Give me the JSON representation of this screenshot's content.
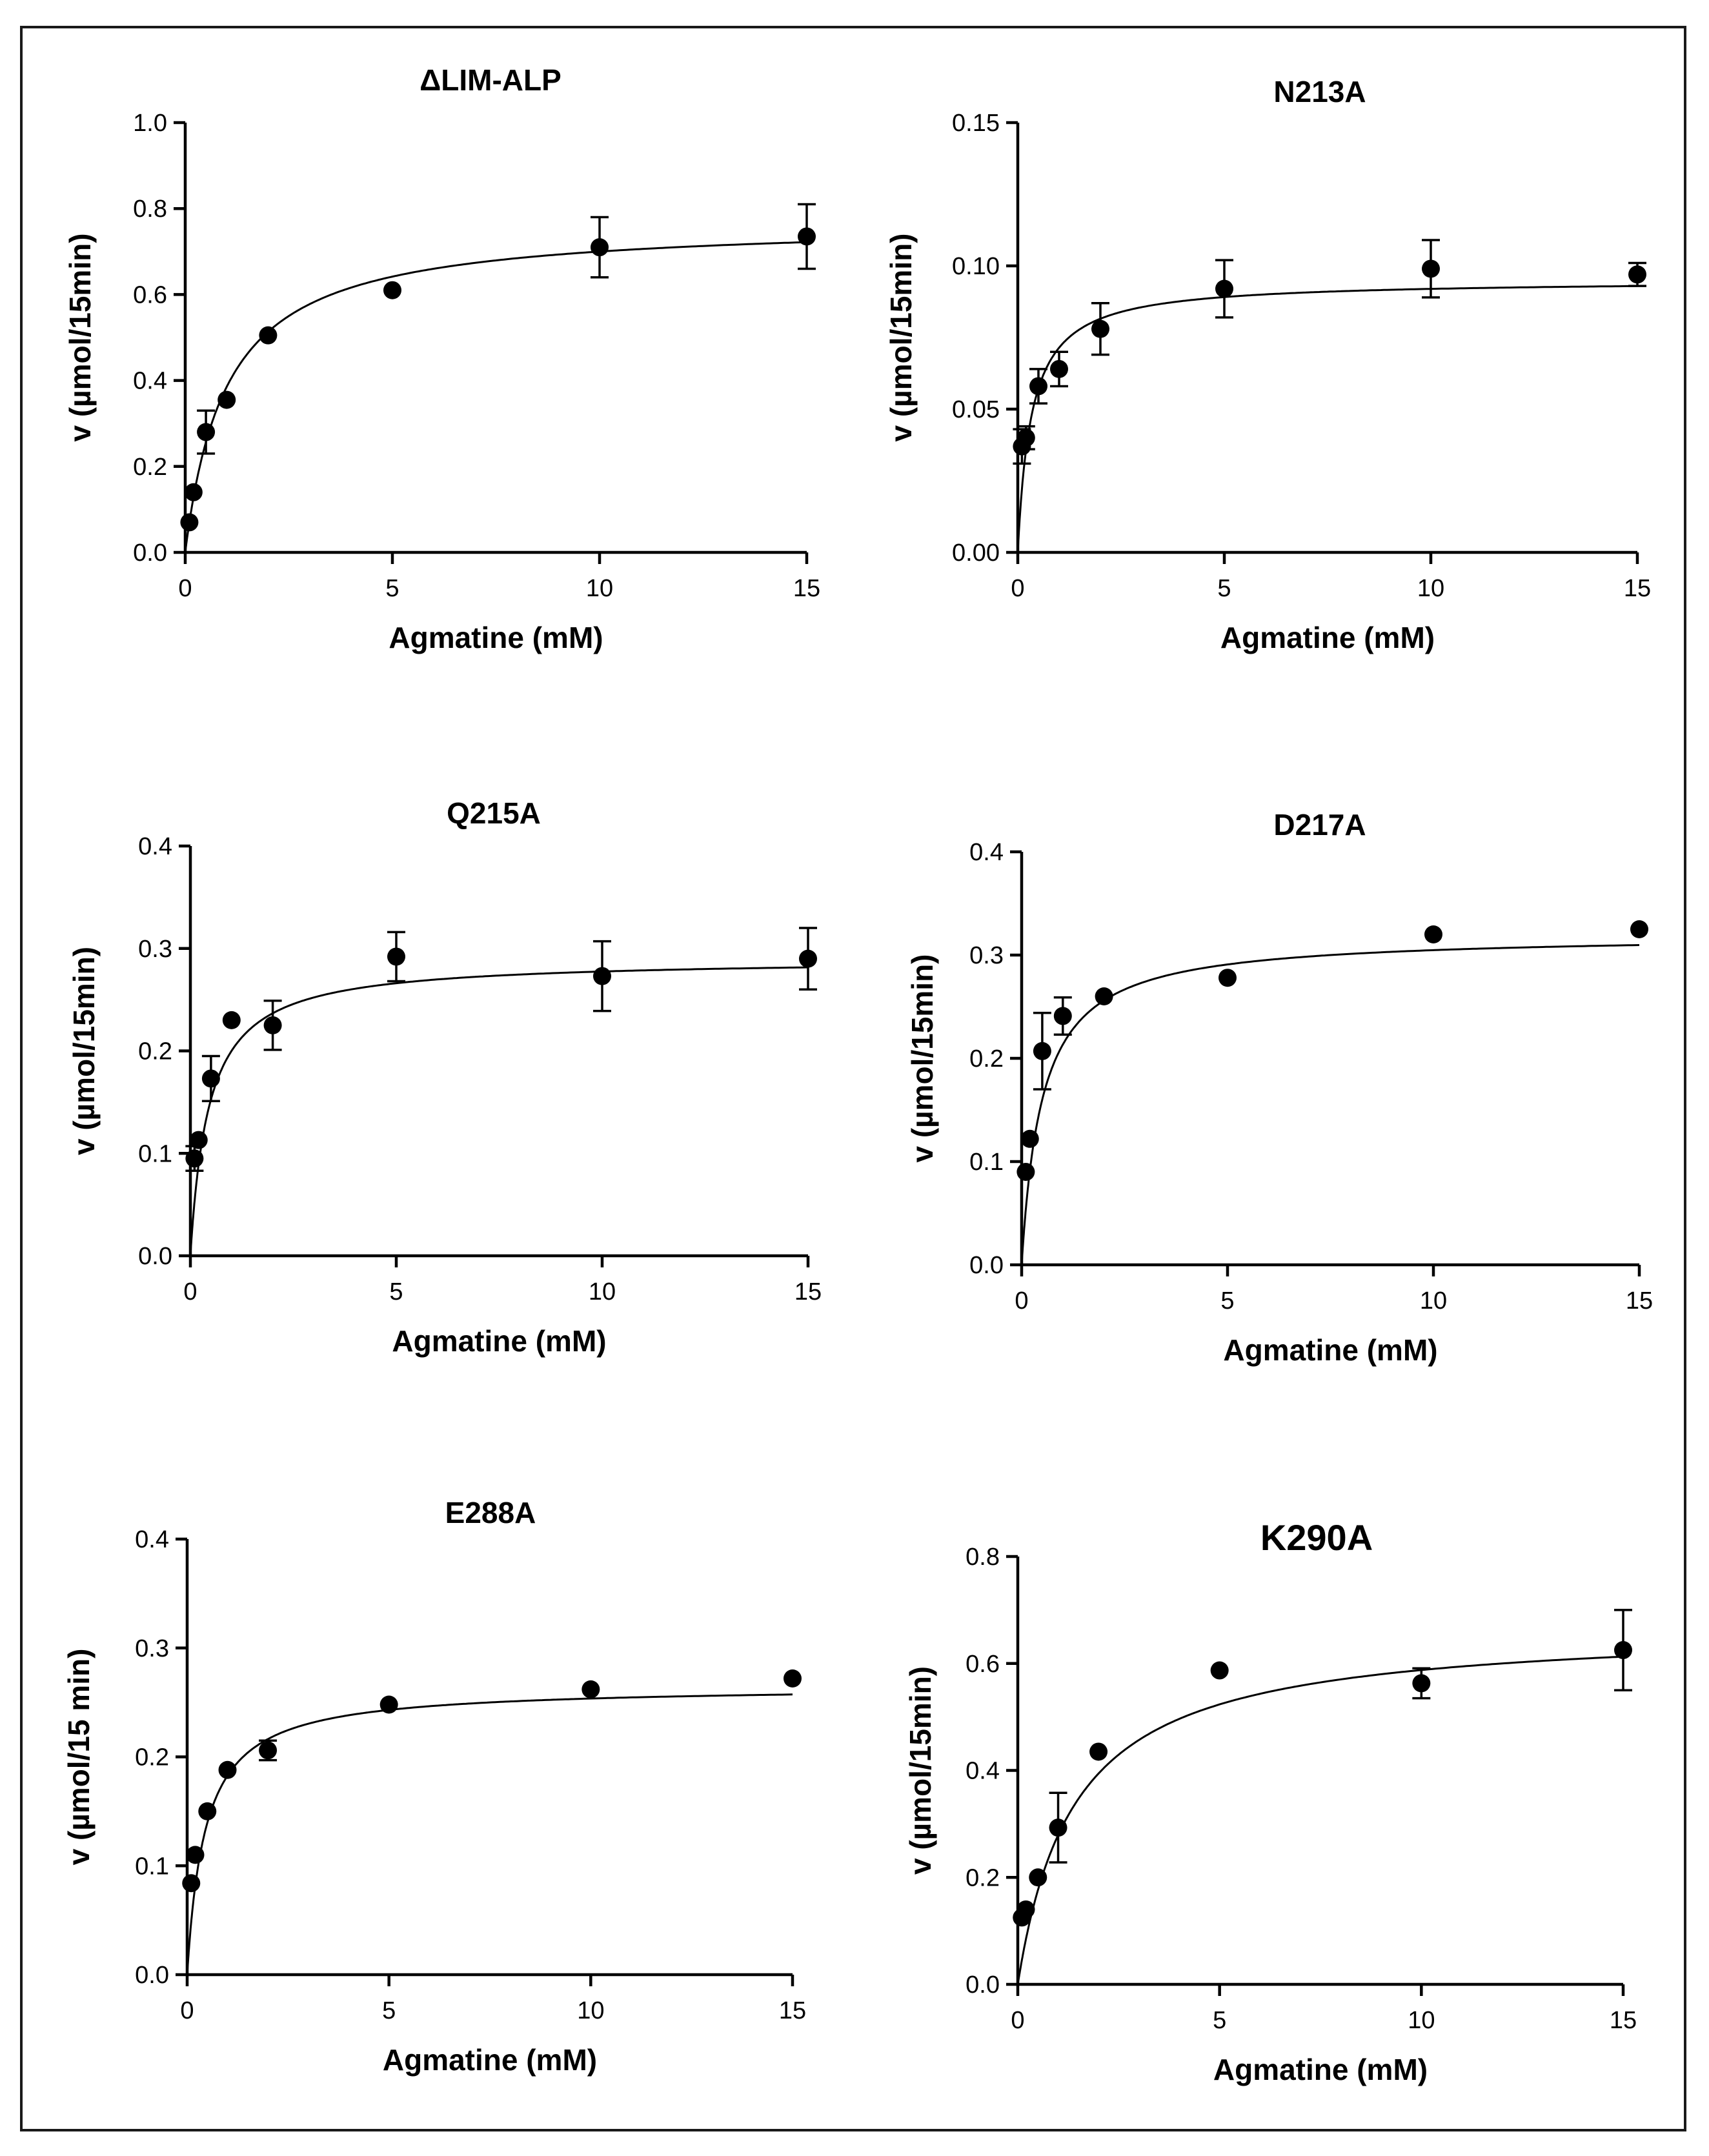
{
  "chart_data": [
    {
      "type": "scatter",
      "title": "ΔLIM-ALP",
      "xlabel": "Agmatine (mM)",
      "ylabel": "v (µmol/15min)",
      "xlim": [
        0,
        15
      ],
      "ylim": [
        0,
        1.0
      ],
      "xticks": [
        0,
        5,
        10,
        15
      ],
      "yticks": [
        0.0,
        0.2,
        0.4,
        0.6,
        0.8,
        1.0
      ],
      "xtick_labels": [
        "0",
        "5",
        "10",
        "15"
      ],
      "ytick_labels": [
        "0.0",
        "0.2",
        "0.4",
        "0.6",
        "0.8",
        "1.0"
      ],
      "points": [
        {
          "x": 0.1,
          "y": 0.07
        },
        {
          "x": 0.2,
          "y": 0.14
        },
        {
          "x": 0.5,
          "y": 0.28,
          "err": 0.05
        },
        {
          "x": 1,
          "y": 0.355
        },
        {
          "x": 2,
          "y": 0.505
        },
        {
          "x": 5,
          "y": 0.61
        },
        {
          "x": 10,
          "y": 0.71,
          "err": 0.07
        },
        {
          "x": 15,
          "y": 0.735,
          "err": 0.075
        }
      ],
      "fit": {
        "model": "michaelis-menten",
        "vmax": 0.77,
        "km": 1.0
      }
    },
    {
      "type": "scatter",
      "title": "N213A",
      "xlabel": "Agmatine (mM)",
      "ylabel": "v (µmol/15min)",
      "xlim": [
        0,
        15
      ],
      "ylim": [
        0,
        0.15
      ],
      "xticks": [
        0,
        5,
        10,
        15
      ],
      "yticks": [
        0.0,
        0.05,
        0.1,
        0.15
      ],
      "xtick_labels": [
        "0",
        "5",
        "10",
        "15"
      ],
      "ytick_labels": [
        "0.00",
        "0.05",
        "0.10",
        "0.15"
      ],
      "points": [
        {
          "x": 0.1,
          "y": 0.037,
          "err": 0.006
        },
        {
          "x": 0.2,
          "y": 0.04,
          "err": 0.004
        },
        {
          "x": 0.5,
          "y": 0.058,
          "err": 0.006
        },
        {
          "x": 1,
          "y": 0.064,
          "err": 0.006
        },
        {
          "x": 2,
          "y": 0.078,
          "err": 0.009
        },
        {
          "x": 5,
          "y": 0.092,
          "err": 0.01
        },
        {
          "x": 10,
          "y": 0.099,
          "err": 0.01
        },
        {
          "x": 15,
          "y": 0.097,
          "err": 0.004
        }
      ],
      "fit": {
        "model": "michaelis-menten",
        "vmax": 0.095,
        "km": 0.33
      }
    },
    {
      "type": "scatter",
      "title": "Q215A",
      "xlabel": "Agmatine (mM)",
      "ylabel": "v (µmol/15min)",
      "xlim": [
        0,
        15
      ],
      "ylim": [
        0,
        0.4
      ],
      "xticks": [
        0,
        5,
        10,
        15
      ],
      "yticks": [
        0.0,
        0.1,
        0.2,
        0.3,
        0.4
      ],
      "xtick_labels": [
        "0",
        "5",
        "10",
        "15"
      ],
      "ytick_labels": [
        "0.0",
        "0.1",
        "0.2",
        "0.3",
        "0.4"
      ],
      "points": [
        {
          "x": 0.1,
          "y": 0.095,
          "err": 0.012
        },
        {
          "x": 0.2,
          "y": 0.113
        },
        {
          "x": 0.5,
          "y": 0.173,
          "err": 0.022
        },
        {
          "x": 1,
          "y": 0.23
        },
        {
          "x": 2,
          "y": 0.225,
          "err": 0.024
        },
        {
          "x": 5,
          "y": 0.292,
          "err": 0.024
        },
        {
          "x": 10,
          "y": 0.273,
          "err": 0.034
        },
        {
          "x": 15,
          "y": 0.29,
          "err": 0.03
        }
      ],
      "fit": {
        "model": "michaelis-menten",
        "vmax": 0.29,
        "km": 0.45
      }
    },
    {
      "type": "scatter",
      "title": "D217A",
      "xlabel": "Agmatine (mM)",
      "ylabel": "v (µmol/15min)",
      "xlim": [
        0,
        15
      ],
      "ylim": [
        0,
        0.4
      ],
      "xticks": [
        0,
        5,
        10,
        15
      ],
      "yticks": [
        0.0,
        0.1,
        0.2,
        0.3,
        0.4
      ],
      "xtick_labels": [
        "0",
        "5",
        "10",
        "15"
      ],
      "ytick_labels": [
        "0.0",
        "0.1",
        "0.2",
        "0.3",
        "0.4"
      ],
      "points": [
        {
          "x": 0.1,
          "y": 0.09
        },
        {
          "x": 0.2,
          "y": 0.122
        },
        {
          "x": 0.5,
          "y": 0.207,
          "err": 0.037
        },
        {
          "x": 1,
          "y": 0.241,
          "err": 0.018
        },
        {
          "x": 2,
          "y": 0.26
        },
        {
          "x": 5,
          "y": 0.278
        },
        {
          "x": 10,
          "y": 0.32
        },
        {
          "x": 15,
          "y": 0.325
        }
      ],
      "fit": {
        "model": "michaelis-menten",
        "vmax": 0.32,
        "km": 0.5
      }
    },
    {
      "type": "scatter",
      "title": "E288A",
      "xlabel": "Agmatine (mM)",
      "ylabel": "v (µmol/15 min)",
      "xlim": [
        0,
        15
      ],
      "ylim": [
        0,
        0.4
      ],
      "xticks": [
        0,
        5,
        10,
        15
      ],
      "yticks": [
        0.0,
        0.1,
        0.2,
        0.3,
        0.4
      ],
      "xtick_labels": [
        "0",
        "5",
        "10",
        "15"
      ],
      "ytick_labels": [
        "0.0",
        "0.1",
        "0.2",
        "0.3",
        "0.4"
      ],
      "points": [
        {
          "x": 0.1,
          "y": 0.084
        },
        {
          "x": 0.2,
          "y": 0.11
        },
        {
          "x": 0.5,
          "y": 0.15
        },
        {
          "x": 1,
          "y": 0.188
        },
        {
          "x": 2,
          "y": 0.206,
          "err": 0.009
        },
        {
          "x": 5,
          "y": 0.248
        },
        {
          "x": 10,
          "y": 0.262
        },
        {
          "x": 15,
          "y": 0.272
        }
      ],
      "fit": {
        "model": "michaelis-menten",
        "vmax": 0.265,
        "km": 0.45
      }
    },
    {
      "type": "scatter",
      "title": "K290A",
      "xlabel": "Agmatine (mM)",
      "ylabel": "v (µmol/15min)",
      "xlim": [
        0,
        15
      ],
      "ylim": [
        0,
        0.8
      ],
      "xticks": [
        0,
        5,
        10,
        15
      ],
      "yticks": [
        0.0,
        0.2,
        0.4,
        0.6,
        0.8
      ],
      "xtick_labels": [
        "0",
        "5",
        "10",
        "15"
      ],
      "ytick_labels": [
        "0.0",
        "0.2",
        "0.4",
        "0.6",
        "0.8"
      ],
      "points": [
        {
          "x": 0.1,
          "y": 0.125
        },
        {
          "x": 0.2,
          "y": 0.14
        },
        {
          "x": 0.5,
          "y": 0.2
        },
        {
          "x": 1,
          "y": 0.293,
          "err": 0.065
        },
        {
          "x": 2,
          "y": 0.435
        },
        {
          "x": 5,
          "y": 0.587
        },
        {
          "x": 10,
          "y": 0.563,
          "err": 0.028
        },
        {
          "x": 15,
          "y": 0.625,
          "err": 0.075
        }
      ],
      "fit": {
        "model": "michaelis-menten",
        "vmax": 0.67,
        "km": 1.4
      }
    }
  ]
}
